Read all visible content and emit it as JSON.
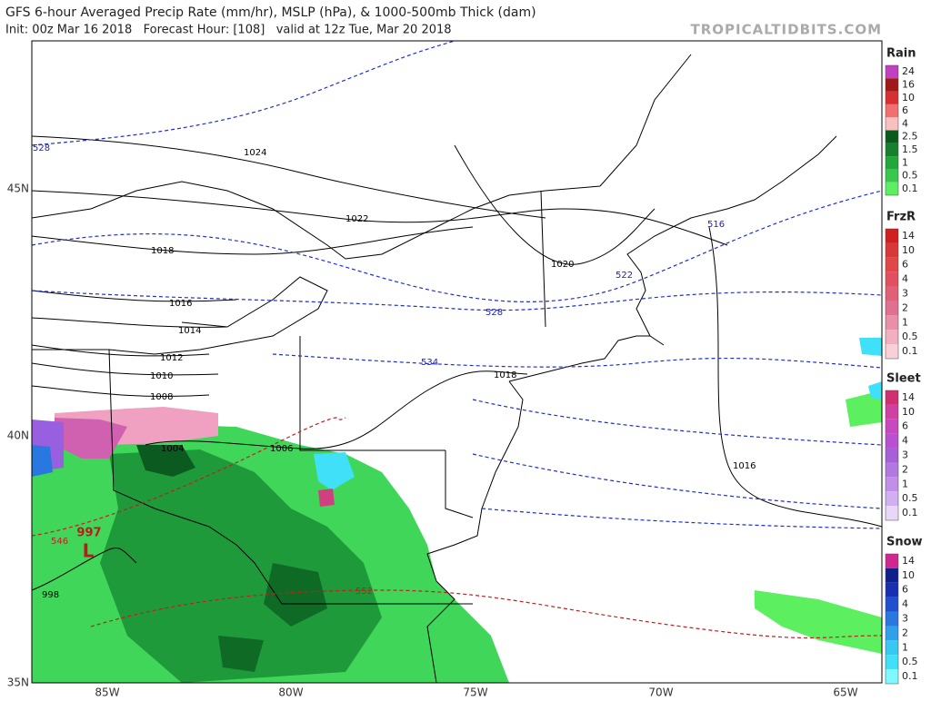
{
  "header": {
    "title": "GFS 6-hour Averaged Precip Rate (mm/hr), MSLP (hPa), & 1000-500mb Thick (dam)",
    "subtitle": "Init: 00z Mar 16 2018   Forecast Hour: [108]   valid at 12z Tue, Mar 20 2018",
    "source": "TROPICALTIDBITS.COM"
  },
  "map": {
    "lat_labels": [
      "45N",
      "40N",
      "35N"
    ],
    "lon_labels": [
      "85W",
      "80W",
      "75W",
      "70W",
      "65W"
    ],
    "isobar_labels": [
      1024,
      1022,
      1018,
      1016,
      1014,
      1012,
      1010,
      1008,
      1004,
      1006,
      1020,
      1018,
      1016,
      998
    ],
    "thickness_labels": [
      528,
      516,
      522,
      528,
      534,
      546,
      552
    ],
    "low": {
      "pressure": 997,
      "symbol": "L"
    }
  },
  "legends": [
    {
      "title": "Rain",
      "levels": [
        {
          "label": 24,
          "color": "#c040c0"
        },
        {
          "label": 16,
          "color": "#a01818"
        },
        {
          "label": 10,
          "color": "#d83030"
        },
        {
          "label": 6,
          "color": "#f07070"
        },
        {
          "label": 4,
          "color": "#f8c0c0"
        },
        {
          "label": 2.5,
          "color": "#0a5a1e"
        },
        {
          "label": 1.5,
          "color": "#16802c"
        },
        {
          "label": 1,
          "color": "#22a83a"
        },
        {
          "label": 0.5,
          "color": "#38c84c"
        },
        {
          "label": 0.1,
          "color": "#5cf060"
        }
      ]
    },
    {
      "title": "FrzR",
      "levels": [
        {
          "label": 14,
          "color": "#d02020"
        },
        {
          "label": 10,
          "color": "#d83838"
        },
        {
          "label": 6,
          "color": "#e04848"
        },
        {
          "label": 4,
          "color": "#e05060"
        },
        {
          "label": 3,
          "color": "#e06078"
        },
        {
          "label": 2,
          "color": "#e07090"
        },
        {
          "label": 1,
          "color": "#e890a8"
        },
        {
          "label": 0.5,
          "color": "#f0b0c0"
        },
        {
          "label": 0.1,
          "color": "#f8d0d8"
        }
      ]
    },
    {
      "title": "Sleet",
      "levels": [
        {
          "label": 14,
          "color": "#d03070"
        },
        {
          "label": 10,
          "color": "#d040a0"
        },
        {
          "label": 6,
          "color": "#c848c0"
        },
        {
          "label": 4,
          "color": "#b850d0"
        },
        {
          "label": 3,
          "color": "#a860d8"
        },
        {
          "label": 2,
          "color": "#b078e0"
        },
        {
          "label": 1,
          "color": "#c090e8"
        },
        {
          "label": 0.5,
          "color": "#d0b0f0"
        },
        {
          "label": 0.1,
          "color": "#e8d8f8"
        }
      ]
    },
    {
      "title": "Snow",
      "levels": [
        {
          "label": 14,
          "color": "#d02890"
        },
        {
          "label": 10,
          "color": "#10208a"
        },
        {
          "label": 6,
          "color": "#1830b0"
        },
        {
          "label": 4,
          "color": "#2050d0"
        },
        {
          "label": 3,
          "color": "#2878e0"
        },
        {
          "label": 2,
          "color": "#30a0e8"
        },
        {
          "label": 1,
          "color": "#38c8f0"
        },
        {
          "label": 0.5,
          "color": "#40e0f8"
        },
        {
          "label": 0.1,
          "color": "#80f8ff"
        }
      ]
    }
  ]
}
